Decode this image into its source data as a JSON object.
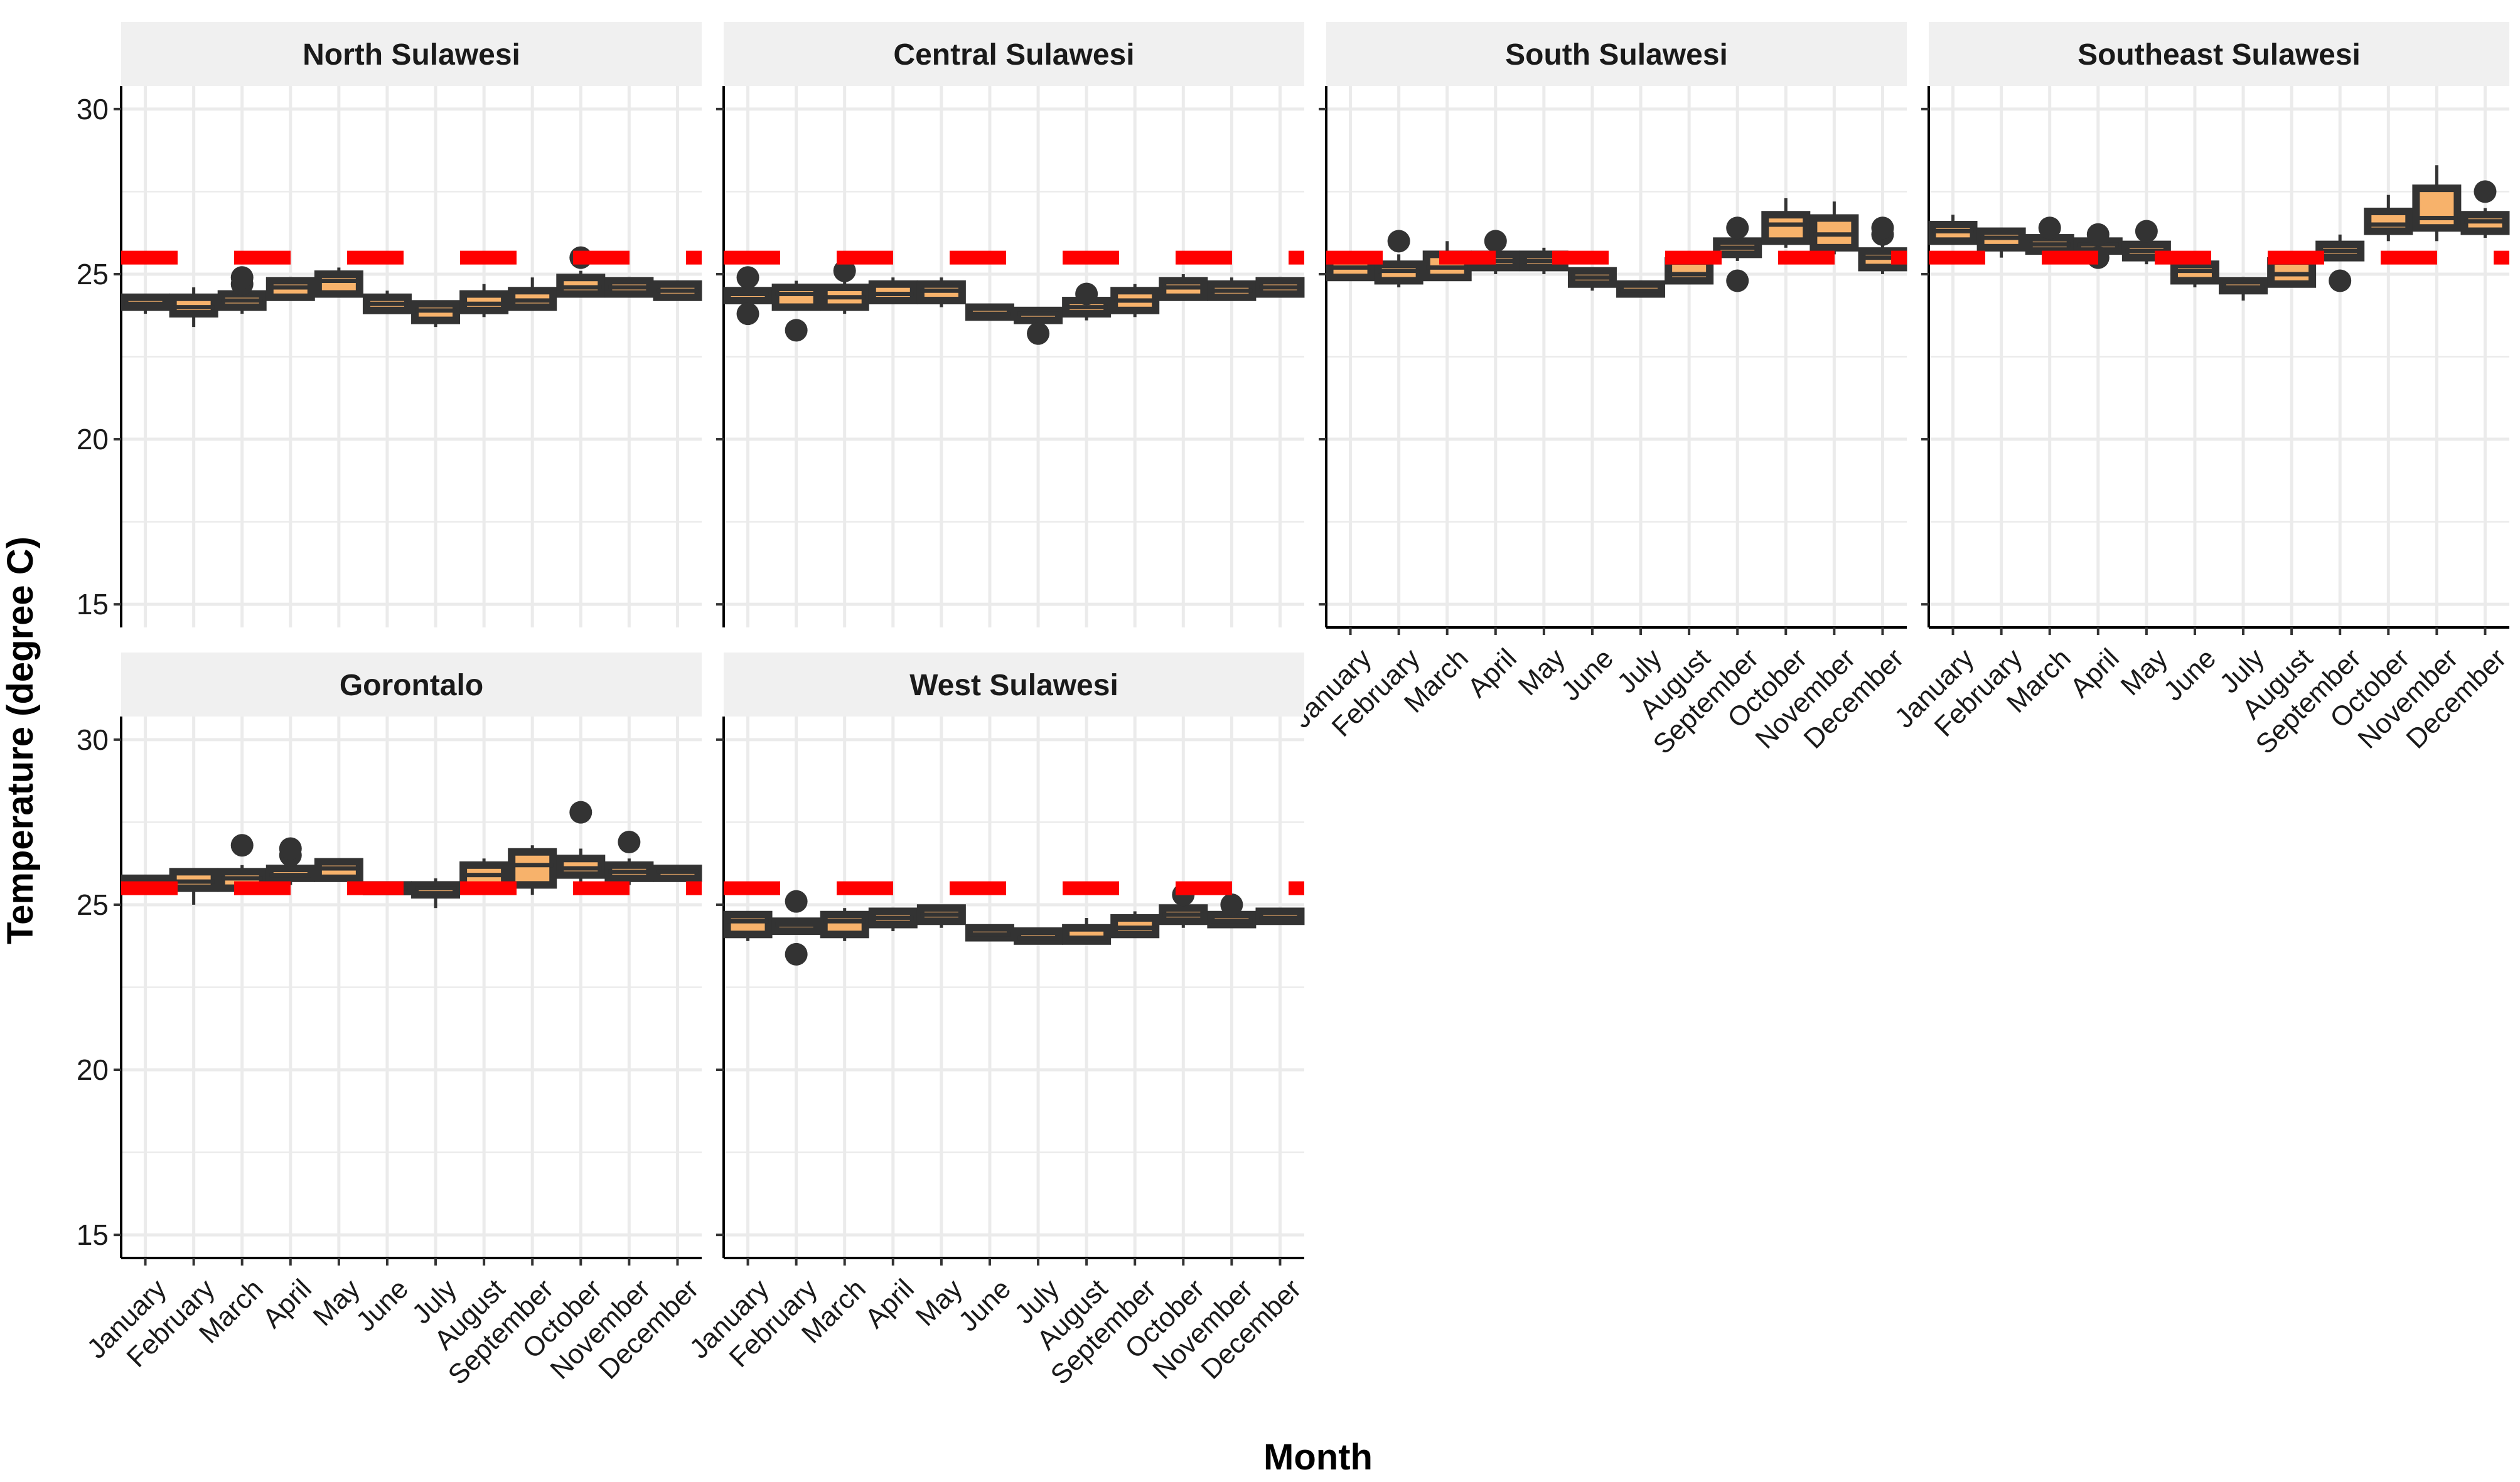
{
  "figure": {
    "xlabel": "Month",
    "ylabel": "Temperature (degree C)"
  },
  "style": {
    "box_fill": "#f7b26b",
    "box_line": "#333333",
    "reference_color": "#ff0000",
    "strip_bg": "#f0f0f0",
    "grid_color": "#ebebeb"
  },
  "chart_data": {
    "type": "boxplot",
    "categories": [
      "January",
      "February",
      "March",
      "April",
      "May",
      "June",
      "July",
      "August",
      "September",
      "October",
      "November",
      "December"
    ],
    "ylim": [
      14.3,
      30.7
    ],
    "yticks": [
      15,
      20,
      25,
      30
    ],
    "reference_line": 25.5,
    "grid": true,
    "panels": [
      {
        "name": "North Sulawesi",
        "series": [
          {
            "q1": 24.0,
            "med": 24.1,
            "q3": 24.3,
            "lo": 23.8,
            "hi": 24.4,
            "out": []
          },
          {
            "q1": 23.8,
            "med": 24.0,
            "q3": 24.3,
            "lo": 23.4,
            "hi": 24.6,
            "out": []
          },
          {
            "q1": 24.0,
            "med": 24.2,
            "q3": 24.4,
            "lo": 23.8,
            "hi": 24.5,
            "out": [
              24.7,
              24.9
            ]
          },
          {
            "q1": 24.3,
            "med": 24.6,
            "q3": 24.8,
            "lo": 24.2,
            "hi": 24.9,
            "out": []
          },
          {
            "q1": 24.4,
            "med": 24.8,
            "q3": 25.0,
            "lo": 24.3,
            "hi": 25.2,
            "out": []
          },
          {
            "q1": 23.9,
            "med": 24.1,
            "q3": 24.3,
            "lo": 23.8,
            "hi": 24.5,
            "out": []
          },
          {
            "q1": 23.6,
            "med": 23.9,
            "q3": 24.1,
            "lo": 23.4,
            "hi": 24.2,
            "out": []
          },
          {
            "q1": 23.9,
            "med": 24.1,
            "q3": 24.4,
            "lo": 23.7,
            "hi": 24.7,
            "out": []
          },
          {
            "q1": 24.0,
            "med": 24.2,
            "q3": 24.5,
            "lo": 23.9,
            "hi": 24.9,
            "out": []
          },
          {
            "q1": 24.4,
            "med": 24.6,
            "q3": 24.9,
            "lo": 24.3,
            "hi": 25.1,
            "out": [
              25.5
            ]
          },
          {
            "q1": 24.4,
            "med": 24.6,
            "q3": 24.8,
            "lo": 24.3,
            "hi": 24.9,
            "out": []
          },
          {
            "q1": 24.3,
            "med": 24.5,
            "q3": 24.7,
            "lo": 24.2,
            "hi": 24.8,
            "out": []
          }
        ]
      },
      {
        "name": "Central Sulawesi",
        "series": [
          {
            "q1": 24.2,
            "med": 24.4,
            "q3": 24.5,
            "lo": 24.0,
            "hi": 24.7,
            "out": [
              23.8,
              24.9
            ]
          },
          {
            "q1": 24.0,
            "med": 24.4,
            "q3": 24.6,
            "lo": 23.9,
            "hi": 24.8,
            "out": [
              23.3
            ]
          },
          {
            "q1": 24.0,
            "med": 24.3,
            "q3": 24.6,
            "lo": 23.8,
            "hi": 24.9,
            "out": [
              25.1
            ]
          },
          {
            "q1": 24.2,
            "med": 24.4,
            "q3": 24.7,
            "lo": 24.1,
            "hi": 24.9,
            "out": []
          },
          {
            "q1": 24.2,
            "med": 24.5,
            "q3": 24.7,
            "lo": 24.0,
            "hi": 24.9,
            "out": []
          },
          {
            "q1": 23.7,
            "med": 23.8,
            "q3": 24.0,
            "lo": 23.6,
            "hi": 24.1,
            "out": []
          },
          {
            "q1": 23.6,
            "med": 23.8,
            "q3": 23.9,
            "lo": 23.5,
            "hi": 24.0,
            "out": [
              23.2
            ]
          },
          {
            "q1": 23.8,
            "med": 24.0,
            "q3": 24.2,
            "lo": 23.6,
            "hi": 24.3,
            "out": [
              24.4
            ]
          },
          {
            "q1": 23.9,
            "med": 24.2,
            "q3": 24.5,
            "lo": 23.7,
            "hi": 24.7,
            "out": []
          },
          {
            "q1": 24.3,
            "med": 24.6,
            "q3": 24.8,
            "lo": 24.2,
            "hi": 25.0,
            "out": []
          },
          {
            "q1": 24.3,
            "med": 24.5,
            "q3": 24.7,
            "lo": 24.2,
            "hi": 24.9,
            "out": []
          },
          {
            "q1": 24.4,
            "med": 24.6,
            "q3": 24.8,
            "lo": 24.3,
            "hi": 24.9,
            "out": []
          }
        ]
      },
      {
        "name": "South Sulawesi",
        "series": [
          {
            "q1": 24.9,
            "med": 25.2,
            "q3": 25.5,
            "lo": 24.8,
            "hi": 25.7,
            "out": []
          },
          {
            "q1": 24.8,
            "med": 25.1,
            "q3": 25.3,
            "lo": 24.6,
            "hi": 25.6,
            "out": [
              26.0
            ]
          },
          {
            "q1": 24.9,
            "med": 25.2,
            "q3": 25.6,
            "lo": 24.8,
            "hi": 26.0,
            "out": []
          },
          {
            "q1": 25.2,
            "med": 25.4,
            "q3": 25.6,
            "lo": 25.0,
            "hi": 25.8,
            "out": [
              26.0
            ]
          },
          {
            "q1": 25.2,
            "med": 25.4,
            "q3": 25.6,
            "lo": 25.0,
            "hi": 25.8,
            "out": []
          },
          {
            "q1": 24.7,
            "med": 24.9,
            "q3": 25.1,
            "lo": 24.5,
            "hi": 25.2,
            "out": []
          },
          {
            "q1": 24.4,
            "med": 24.5,
            "q3": 24.7,
            "lo": 24.3,
            "hi": 24.8,
            "out": []
          },
          {
            "q1": 24.8,
            "med": 25.0,
            "q3": 25.4,
            "lo": 24.7,
            "hi": 25.6,
            "out": []
          },
          {
            "q1": 25.6,
            "med": 25.8,
            "q3": 26.0,
            "lo": 25.4,
            "hi": 26.1,
            "out": [
              24.8,
              26.4
            ]
          },
          {
            "q1": 26.0,
            "med": 26.5,
            "q3": 26.8,
            "lo": 25.8,
            "hi": 27.3,
            "out": []
          },
          {
            "q1": 25.8,
            "med": 26.2,
            "q3": 26.7,
            "lo": 25.6,
            "hi": 27.2,
            "out": []
          },
          {
            "q1": 25.2,
            "med": 25.5,
            "q3": 25.7,
            "lo": 25.0,
            "hi": 25.9,
            "out": [
              26.2,
              26.4
            ]
          }
        ]
      },
      {
        "name": "Southeast Sulawesi",
        "series": [
          {
            "q1": 26.0,
            "med": 26.3,
            "q3": 26.5,
            "lo": 25.9,
            "hi": 26.8,
            "out": []
          },
          {
            "q1": 25.8,
            "med": 26.1,
            "q3": 26.3,
            "lo": 25.5,
            "hi": 26.4,
            "out": []
          },
          {
            "q1": 25.7,
            "med": 25.9,
            "q3": 26.1,
            "lo": 25.5,
            "hi": 26.2,
            "out": [
              26.4
            ]
          },
          {
            "q1": 25.7,
            "med": 25.9,
            "q3": 26.0,
            "lo": 25.6,
            "hi": 26.1,
            "out": [
              25.5,
              26.2
            ]
          },
          {
            "q1": 25.5,
            "med": 25.7,
            "q3": 25.9,
            "lo": 25.3,
            "hi": 26.0,
            "out": [
              26.3
            ]
          },
          {
            "q1": 24.8,
            "med": 25.1,
            "q3": 25.3,
            "lo": 24.6,
            "hi": 25.4,
            "out": []
          },
          {
            "q1": 24.5,
            "med": 24.6,
            "q3": 24.8,
            "lo": 24.2,
            "hi": 24.9,
            "out": []
          },
          {
            "q1": 24.7,
            "med": 25.0,
            "q3": 25.4,
            "lo": 24.6,
            "hi": 25.6,
            "out": []
          },
          {
            "q1": 25.5,
            "med": 25.7,
            "q3": 25.9,
            "lo": 25.4,
            "hi": 26.2,
            "out": [
              24.8
            ]
          },
          {
            "q1": 26.3,
            "med": 26.5,
            "q3": 26.9,
            "lo": 26.0,
            "hi": 27.4,
            "out": []
          },
          {
            "q1": 26.4,
            "med": 26.7,
            "q3": 27.6,
            "lo": 26.0,
            "hi": 28.3,
            "out": []
          },
          {
            "q1": 26.3,
            "med": 26.6,
            "q3": 26.8,
            "lo": 26.1,
            "hi": 27.0,
            "out": [
              27.5
            ]
          }
        ]
      },
      {
        "name": "Gorontalo",
        "series": [
          {
            "q1": 25.6,
            "med": 25.7,
            "q3": 25.8,
            "lo": 25.5,
            "hi": 25.8,
            "out": []
          },
          {
            "q1": 25.5,
            "med": 25.7,
            "q3": 26.0,
            "lo": 25.0,
            "hi": 26.1,
            "out": []
          },
          {
            "q1": 25.5,
            "med": 25.8,
            "q3": 26.0,
            "lo": 25.4,
            "hi": 26.2,
            "out": [
              26.8
            ]
          },
          {
            "q1": 25.8,
            "med": 25.9,
            "q3": 26.1,
            "lo": 25.6,
            "hi": 26.3,
            "out": [
              26.5,
              26.7
            ]
          },
          {
            "q1": 25.8,
            "med": 26.1,
            "q3": 26.3,
            "lo": 25.7,
            "hi": 26.4,
            "out": []
          },
          {
            "q1": 25.4,
            "med": 25.5,
            "q3": 25.6,
            "lo": 25.3,
            "hi": 25.7,
            "out": []
          },
          {
            "q1": 25.3,
            "med": 25.5,
            "q3": 25.6,
            "lo": 24.9,
            "hi": 25.8,
            "out": []
          },
          {
            "q1": 25.5,
            "med": 25.9,
            "q3": 26.2,
            "lo": 25.4,
            "hi": 26.4,
            "out": []
          },
          {
            "q1": 25.6,
            "med": 26.2,
            "q3": 26.6,
            "lo": 25.3,
            "hi": 26.8,
            "out": []
          },
          {
            "q1": 25.9,
            "med": 26.1,
            "q3": 26.4,
            "lo": 25.7,
            "hi": 26.7,
            "out": [
              27.8
            ]
          },
          {
            "q1": 25.8,
            "med": 26.0,
            "q3": 26.2,
            "lo": 25.6,
            "hi": 26.4,
            "out": [
              26.9
            ]
          },
          {
            "q1": 25.8,
            "med": 26.0,
            "q3": 26.1,
            "lo": 25.7,
            "hi": 26.2,
            "out": []
          }
        ]
      },
      {
        "name": "West Sulawesi",
        "series": [
          {
            "q1": 24.1,
            "med": 24.5,
            "q3": 24.7,
            "lo": 23.9,
            "hi": 24.8,
            "out": []
          },
          {
            "q1": 24.2,
            "med": 24.4,
            "q3": 24.5,
            "lo": 24.1,
            "hi": 24.6,
            "out": [
              23.5,
              25.1
            ]
          },
          {
            "q1": 24.1,
            "med": 24.5,
            "q3": 24.7,
            "lo": 23.9,
            "hi": 24.9,
            "out": []
          },
          {
            "q1": 24.4,
            "med": 24.6,
            "q3": 24.8,
            "lo": 24.2,
            "hi": 24.9,
            "out": []
          },
          {
            "q1": 24.5,
            "med": 24.7,
            "q3": 24.9,
            "lo": 24.3,
            "hi": 25.0,
            "out": []
          },
          {
            "q1": 24.0,
            "med": 24.1,
            "q3": 24.3,
            "lo": 23.9,
            "hi": 24.4,
            "out": []
          },
          {
            "q1": 23.9,
            "med": 24.0,
            "q3": 24.2,
            "lo": 23.8,
            "hi": 24.3,
            "out": []
          },
          {
            "q1": 23.9,
            "med": 24.0,
            "q3": 24.3,
            "lo": 23.8,
            "hi": 24.6,
            "out": []
          },
          {
            "q1": 24.1,
            "med": 24.3,
            "q3": 24.6,
            "lo": 24.0,
            "hi": 24.8,
            "out": []
          },
          {
            "q1": 24.5,
            "med": 24.7,
            "q3": 24.9,
            "lo": 24.3,
            "hi": 25.0,
            "out": [
              25.3
            ]
          },
          {
            "q1": 24.4,
            "med": 24.5,
            "q3": 24.7,
            "lo": 24.3,
            "hi": 24.8,
            "out": [
              25.0
            ]
          },
          {
            "q1": 24.5,
            "med": 24.6,
            "q3": 24.8,
            "lo": 24.4,
            "hi": 24.9,
            "out": []
          }
        ]
      }
    ]
  }
}
